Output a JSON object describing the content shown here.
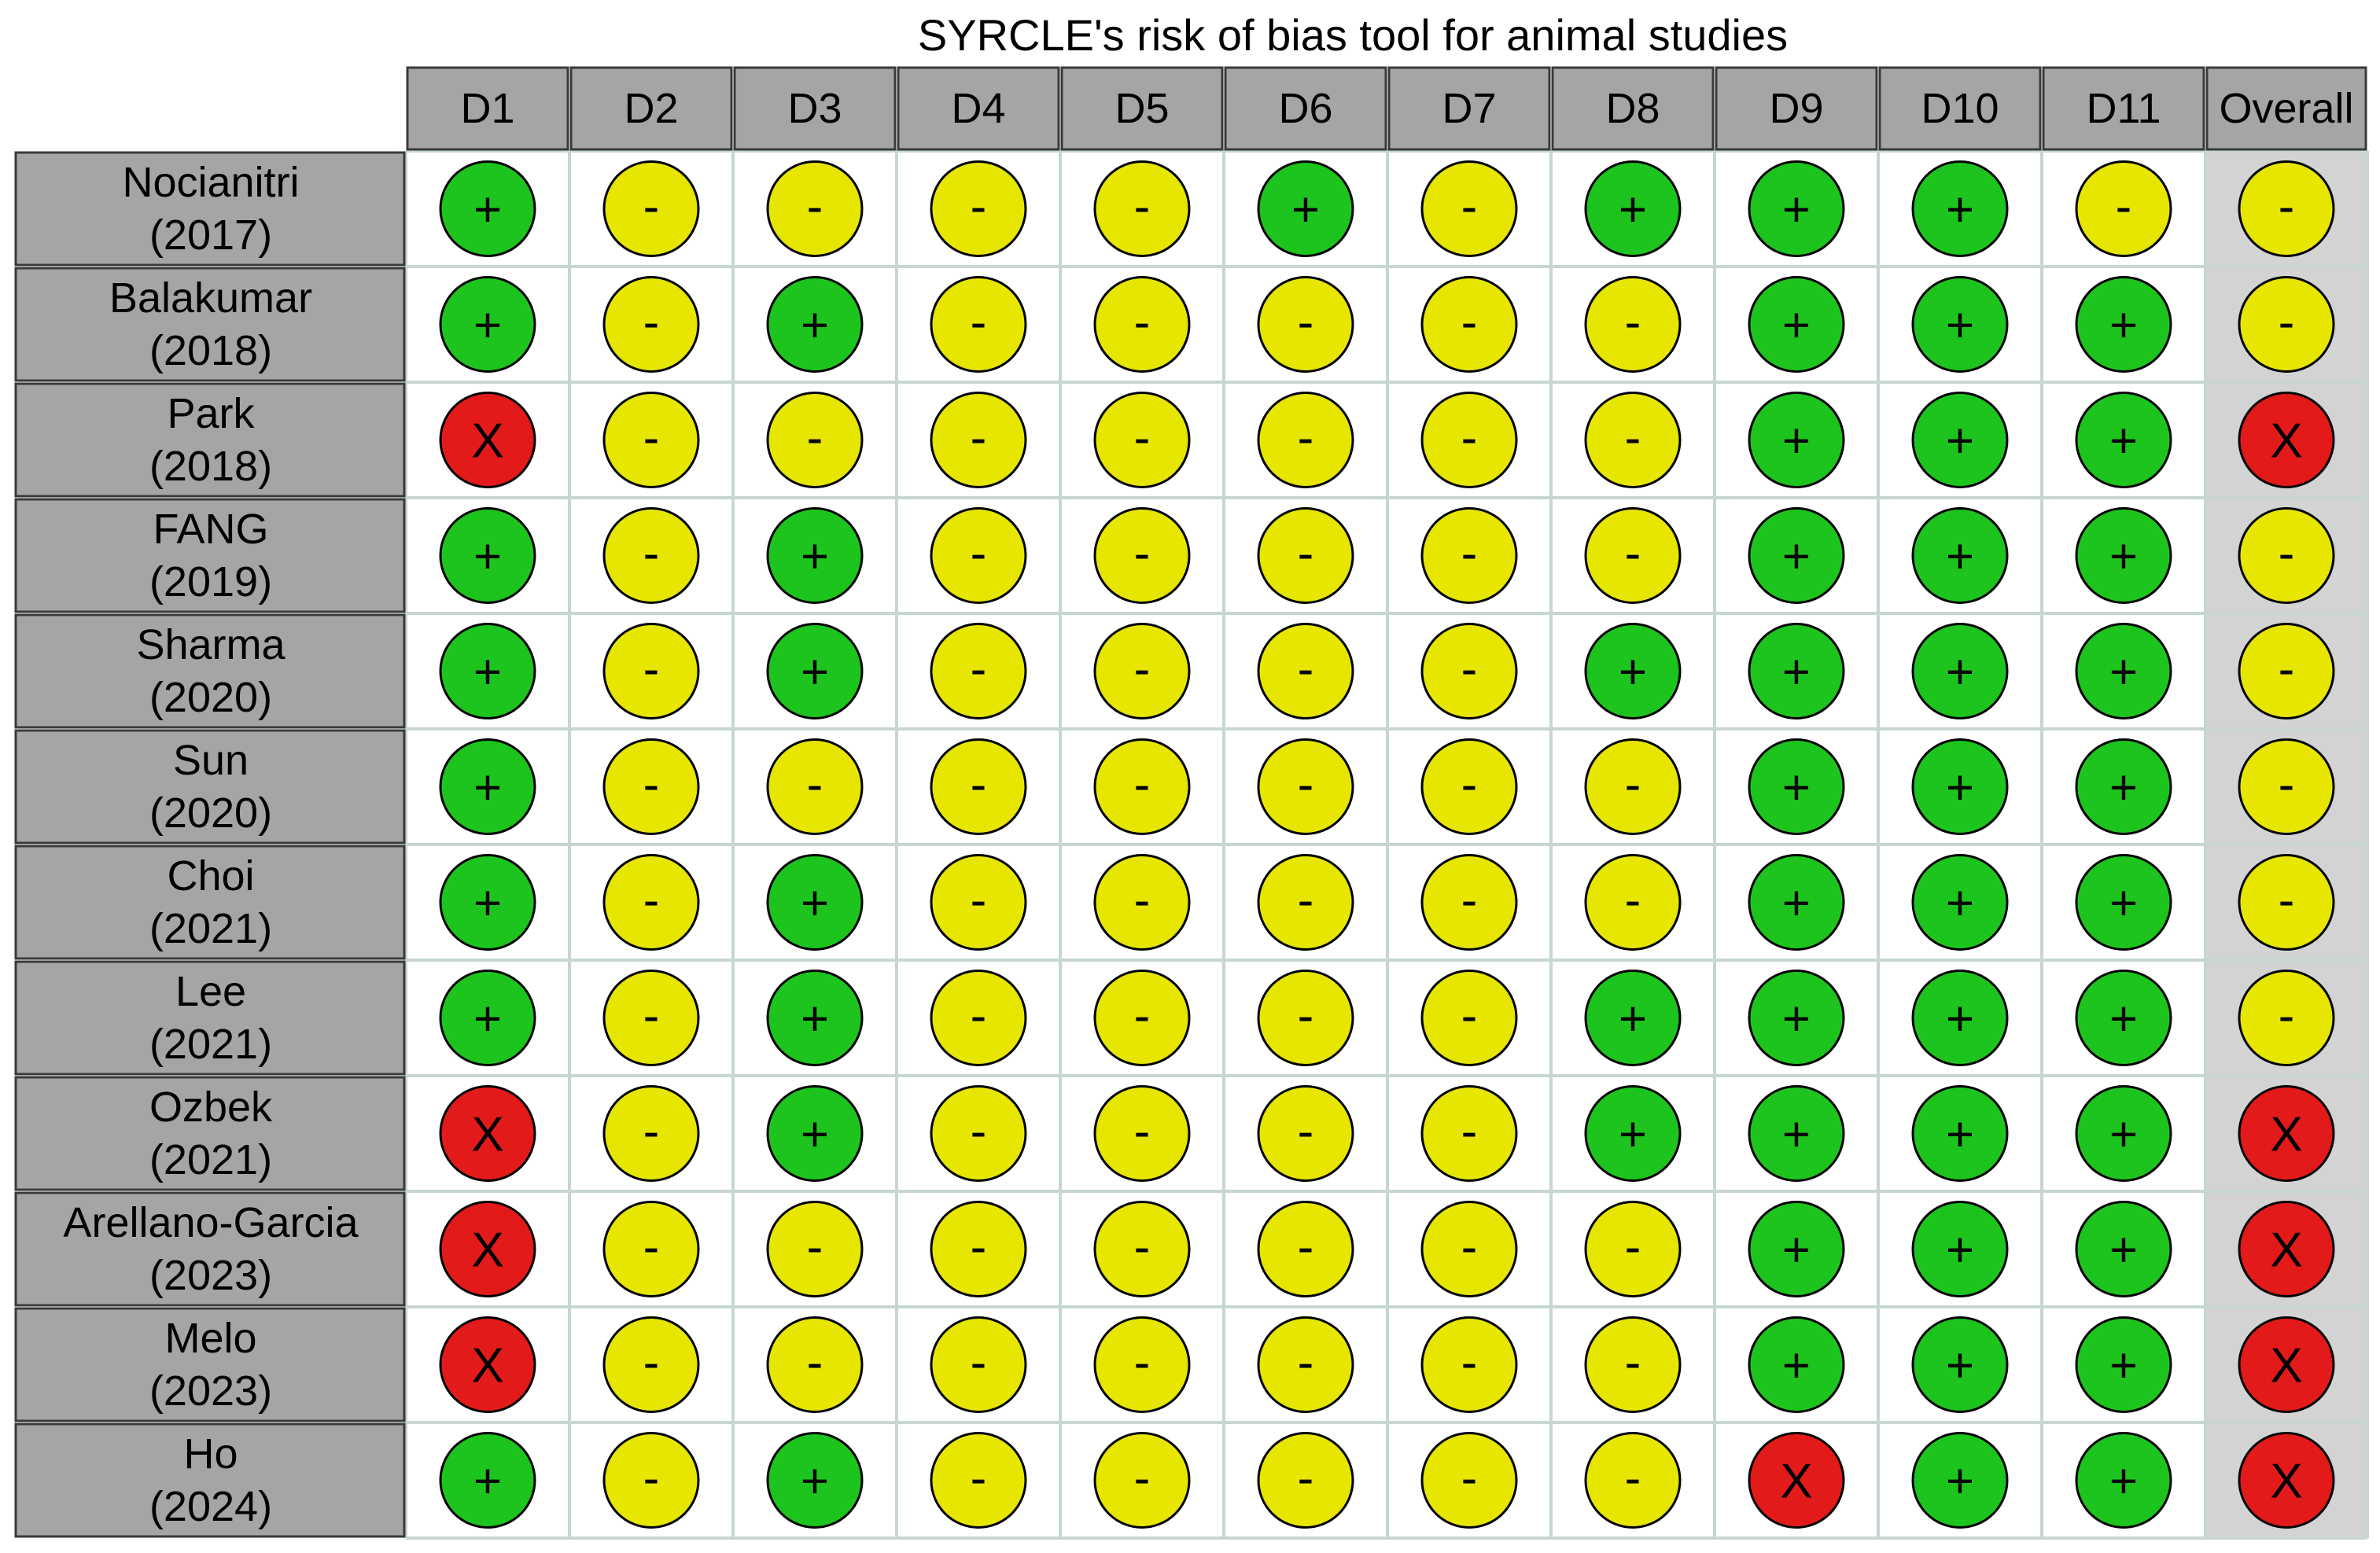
{
  "chart_data": {
    "type": "table",
    "title": "SYRCLE's risk of bias tool for animal studies",
    "columns": [
      "D1",
      "D2",
      "D3",
      "D4",
      "D5",
      "D6",
      "D7",
      "D8",
      "D9",
      "D10",
      "D11",
      "Overall"
    ],
    "rows": [
      {
        "name": "Nocianitri",
        "year": "(2017)",
        "values": [
          "+",
          "-",
          "-",
          "-",
          "-",
          "+",
          "-",
          "+",
          "+",
          "+",
          "-",
          "-"
        ]
      },
      {
        "name": "Balakumar",
        "year": "(2018)",
        "values": [
          "+",
          "-",
          "+",
          "-",
          "-",
          "-",
          "-",
          "-",
          "+",
          "+",
          "+",
          "-"
        ]
      },
      {
        "name": "Park",
        "year": "(2018)",
        "values": [
          "X",
          "-",
          "-",
          "-",
          "-",
          "-",
          "-",
          "-",
          "+",
          "+",
          "+",
          "X"
        ]
      },
      {
        "name": "FANG",
        "year": "(2019)",
        "values": [
          "+",
          "-",
          "+",
          "-",
          "-",
          "-",
          "-",
          "-",
          "+",
          "+",
          "+",
          "-"
        ]
      },
      {
        "name": "Sharma",
        "year": "(2020)",
        "values": [
          "+",
          "-",
          "+",
          "-",
          "-",
          "-",
          "-",
          "+",
          "+",
          "+",
          "+",
          "-"
        ]
      },
      {
        "name": "Sun",
        "year": "(2020)",
        "values": [
          "+",
          "-",
          "-",
          "-",
          "-",
          "-",
          "-",
          "-",
          "+",
          "+",
          "+",
          "-"
        ]
      },
      {
        "name": "Choi",
        "year": "(2021)",
        "values": [
          "+",
          "-",
          "+",
          "-",
          "-",
          "-",
          "-",
          "-",
          "+",
          "+",
          "+",
          "-"
        ]
      },
      {
        "name": "Lee",
        "year": "(2021)",
        "values": [
          "+",
          "-",
          "+",
          "-",
          "-",
          "-",
          "-",
          "+",
          "+",
          "+",
          "+",
          "-"
        ]
      },
      {
        "name": "Ozbek",
        "year": "(2021)",
        "values": [
          "X",
          "-",
          "+",
          "-",
          "-",
          "-",
          "-",
          "+",
          "+",
          "+",
          "+",
          "X"
        ]
      },
      {
        "name": "Arellano-Garcia",
        "year": "(2023)",
        "values": [
          "X",
          "-",
          "-",
          "-",
          "-",
          "-",
          "-",
          "-",
          "+",
          "+",
          "+",
          "X"
        ]
      },
      {
        "name": "Melo",
        "year": "(2023)",
        "values": [
          "X",
          "-",
          "-",
          "-",
          "-",
          "-",
          "-",
          "-",
          "+",
          "+",
          "+",
          "X"
        ]
      },
      {
        "name": "Ho",
        "year": "(2024)",
        "values": [
          "+",
          "-",
          "+",
          "-",
          "-",
          "-",
          "-",
          "-",
          "X",
          "+",
          "+",
          "X"
        ]
      }
    ],
    "colors": {
      "+": "#1ec41e",
      "-": "#e6e600",
      "X": "#e31a1a",
      "header_bg": "#a5a5a5",
      "overall_bg": "#d3d3d3",
      "grid": "#c7d6d0"
    }
  }
}
